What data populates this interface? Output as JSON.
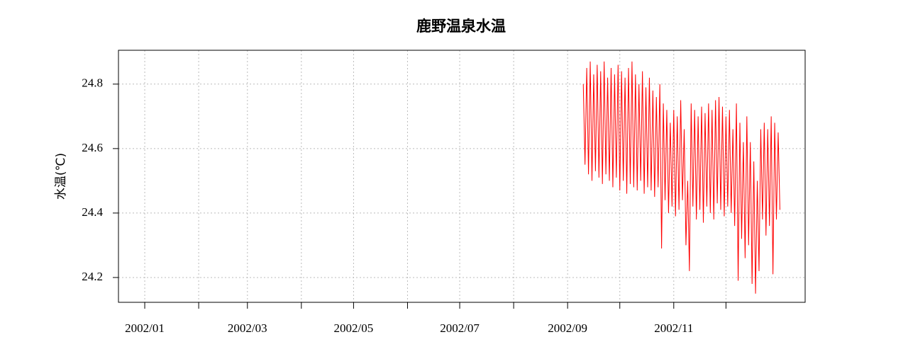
{
  "chart_data": {
    "type": "line",
    "title": "鹿野温泉水温",
    "y_label": "水温(℃)",
    "xlim": [
      -15.1,
      379.5
    ],
    "ylim": [
      24.123,
      24.905
    ],
    "xticks": [
      {
        "value": 0,
        "label": "2002/01"
      },
      {
        "value": 31,
        "label": null
      },
      {
        "value": 59,
        "label": "2002/03"
      },
      {
        "value": 90,
        "label": null
      },
      {
        "value": 120,
        "label": "2002/05"
      },
      {
        "value": 151,
        "label": null
      },
      {
        "value": 181,
        "label": "2002/07"
      },
      {
        "value": 212,
        "label": null
      },
      {
        "value": 243,
        "label": "2002/09"
      },
      {
        "value": 273,
        "label": null
      },
      {
        "value": 304,
        "label": "2002/11"
      },
      {
        "value": 334,
        "label": null
      }
    ],
    "yticks": [
      24.2,
      24.4,
      24.6,
      24.8
    ],
    "grid": true,
    "x": [
      252,
      253,
      254,
      255,
      256,
      257,
      258,
      259,
      260,
      261,
      262,
      263,
      264,
      265,
      266,
      267,
      268,
      269,
      270,
      271,
      272,
      273,
      274,
      275,
      276,
      277,
      278,
      279,
      280,
      281,
      282,
      283,
      284,
      285,
      286,
      287,
      288,
      289,
      290,
      291,
      292,
      293,
      294,
      295,
      296,
      297,
      298,
      299,
      300,
      301,
      302,
      303,
      304,
      305,
      306,
      307,
      308,
      309,
      310,
      311,
      312,
      313,
      314,
      315,
      316,
      317,
      318,
      319,
      320,
      321,
      322,
      323,
      324,
      325,
      326,
      327,
      328,
      329,
      330,
      331,
      332,
      333,
      334,
      335,
      336,
      337,
      338,
      339,
      340,
      341,
      342,
      343,
      344,
      345,
      346,
      347,
      348,
      349,
      350,
      351,
      352,
      353,
      354,
      355,
      356,
      357,
      358,
      359,
      360,
      361,
      362,
      363,
      364,
      365
    ],
    "series": [
      {
        "color": "#ff0000",
        "values": [
          24.8,
          24.55,
          24.85,
          24.52,
          24.87,
          24.5,
          24.83,
          24.53,
          24.86,
          24.51,
          24.84,
          24.49,
          24.87,
          24.52,
          24.82,
          24.5,
          24.85,
          24.48,
          24.83,
          24.51,
          24.86,
          24.47,
          24.84,
          24.5,
          24.82,
          24.46,
          24.85,
          24.49,
          24.87,
          24.48,
          24.83,
          24.47,
          24.8,
          24.5,
          24.84,
          24.46,
          24.79,
          24.48,
          24.82,
          24.47,
          24.78,
          24.45,
          24.76,
          24.48,
          24.8,
          24.29,
          24.74,
          24.44,
          24.72,
          24.4,
          24.68,
          24.42,
          24.72,
          24.39,
          24.7,
          24.41,
          24.75,
          24.44,
          24.66,
          24.3,
          24.5,
          24.22,
          24.74,
          24.42,
          24.72,
          24.38,
          24.7,
          24.41,
          24.73,
          24.37,
          24.71,
          24.42,
          24.74,
          24.4,
          24.72,
          24.38,
          24.75,
          24.43,
          24.76,
          24.41,
          24.73,
          24.39,
          24.7,
          24.42,
          24.72,
          24.4,
          24.66,
          24.36,
          24.74,
          24.19,
          24.68,
          24.32,
          24.62,
          24.26,
          24.7,
          24.3,
          24.62,
          24.18,
          24.56,
          24.15,
          24.5,
          24.22,
          24.66,
          24.38,
          24.68,
          24.33,
          24.66,
          24.36,
          24.7,
          24.21,
          24.68,
          24.38,
          24.65,
          24.41
        ]
      }
    ]
  }
}
